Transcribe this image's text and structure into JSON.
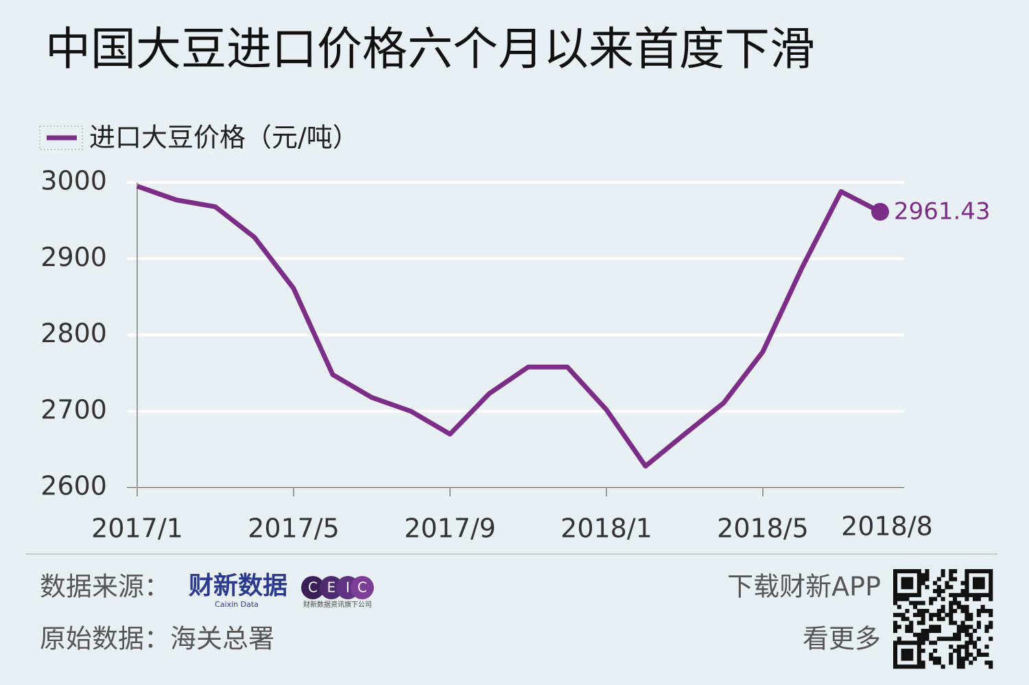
{
  "chart_data": {
    "type": "line",
    "title": "中国大豆进口价格六个月以来首度下滑",
    "categories": [
      "2017/1",
      null,
      null,
      null,
      "2017/5",
      null,
      null,
      null,
      "2017/9",
      null,
      null,
      null,
      "2018/1",
      null,
      null,
      null,
      "2018/5",
      null,
      null,
      "2018/8"
    ],
    "series": [
      {
        "name": "进口大豆价格（元/吨）",
        "color": "#7b2d87",
        "values": [
          2995,
          2977,
          2968,
          2928,
          2861,
          2748,
          2718,
          2700,
          2670,
          2723,
          2758,
          2758,
          2702,
          2628,
          2670,
          2711,
          2778,
          2888,
          2988,
          2961.43
        ]
      }
    ],
    "ylim": [
      2600,
      3000
    ],
    "yticks": [
      2600,
      2700,
      2800,
      2900,
      3000
    ],
    "grid": true
  },
  "footer": {
    "source_label": "数据来源：",
    "brand": "财新数据",
    "brand_en": "Caixin Data",
    "ceic": [
      "C",
      "E",
      "I",
      "C"
    ],
    "ceic_sub": "财新数据资讯旗下公司",
    "origin": "原始数据：海关总署",
    "app": "下载财新APP",
    "more": "看更多"
  }
}
